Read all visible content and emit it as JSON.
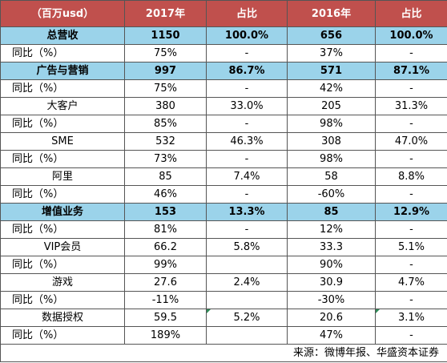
{
  "table": {
    "header": [
      "（百万usd）",
      "2017年",
      "占比",
      "2016年",
      "占比"
    ],
    "rows": [
      {
        "kind": "section",
        "cells": [
          "总营收",
          "1150",
          "100.0%",
          "656",
          "100.0%"
        ]
      },
      {
        "kind": "yoy",
        "cells": [
          "同比（%）",
          "75%",
          "-",
          "37%",
          "-"
        ]
      },
      {
        "kind": "section",
        "cells": [
          "广告与营销",
          "997",
          "86.7%",
          "571",
          "87.1%"
        ]
      },
      {
        "kind": "yoy",
        "cells": [
          "同比（%）",
          "75%",
          "-",
          "42%",
          "-"
        ]
      },
      {
        "kind": "item",
        "cells": [
          "大客户",
          "380",
          "33.0%",
          "205",
          "31.3%"
        ]
      },
      {
        "kind": "yoy",
        "cells": [
          "同比（%）",
          "85%",
          "-",
          "98%",
          "-"
        ]
      },
      {
        "kind": "item",
        "cells": [
          "SME",
          "532",
          "46.3%",
          "308",
          "47.0%"
        ]
      },
      {
        "kind": "yoy",
        "cells": [
          "同比（%）",
          "73%",
          "-",
          "98%",
          "-"
        ]
      },
      {
        "kind": "item",
        "cells": [
          "阿里",
          "85",
          "7.4%",
          "58",
          "8.8%"
        ]
      },
      {
        "kind": "yoy",
        "cells": [
          "同比（%）",
          "46%",
          "-",
          "-60%",
          "-"
        ]
      },
      {
        "kind": "section",
        "cells": [
          "增值业务",
          "153",
          "13.3%",
          "85",
          "12.9%"
        ]
      },
      {
        "kind": "yoy",
        "cells": [
          "同比（%）",
          "81%",
          "-",
          "12%",
          "-"
        ]
      },
      {
        "kind": "item",
        "cells": [
          "VIP会员",
          "66.2",
          "5.8%",
          "33.3",
          "5.1%"
        ]
      },
      {
        "kind": "yoy",
        "cells": [
          "同比（%）",
          "99%",
          "",
          "90%",
          "-"
        ]
      },
      {
        "kind": "item",
        "cells": [
          "游戏",
          "27.6",
          "2.4%",
          "30.9",
          "4.7%"
        ]
      },
      {
        "kind": "yoy",
        "cells": [
          "同比（%）",
          "-11%",
          "",
          "-30%",
          "-"
        ]
      },
      {
        "kind": "item",
        "cells": [
          "数据授权",
          "59.5",
          "5.2%",
          "20.6",
          "3.1%"
        ]
      },
      {
        "kind": "yoy",
        "cells": [
          "同比（%）",
          "189%",
          "",
          "47%",
          "-"
        ]
      }
    ],
    "source": "来源：微博年报、华盛资本证券"
  },
  "colors": {
    "header_bg": "#c0504d",
    "section_bg": "#9bd3ea",
    "border": "#555555",
    "marker": "#2e8b57"
  }
}
